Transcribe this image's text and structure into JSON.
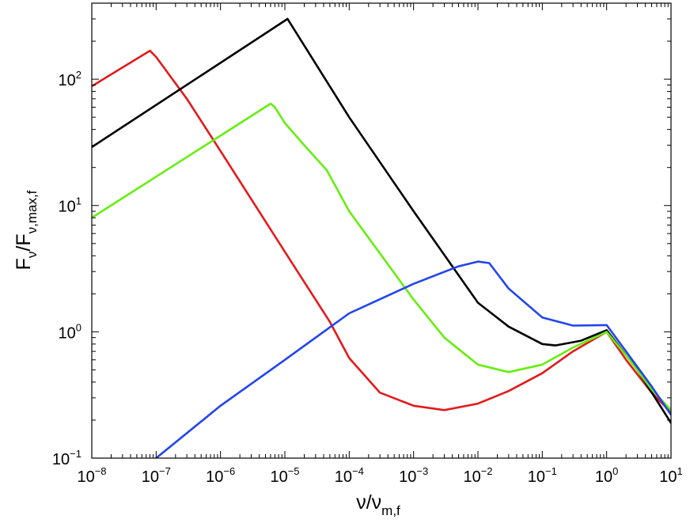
{
  "chart_data": {
    "type": "line",
    "xlabel": {
      "main": "ν/ν",
      "sub": "m,f"
    },
    "ylabel": {
      "main": "F",
      "sub1": "ν",
      "mid": "/F",
      "sub2": "ν,max,f"
    },
    "x_scale": "log",
    "y_scale": "log",
    "xlim": [
      1e-08,
      10
    ],
    "ylim": [
      0.1,
      400
    ],
    "x_ticks": [
      {
        "base": "10",
        "exp": "−8",
        "value": 1e-08
      },
      {
        "base": "10",
        "exp": "−7",
        "value": 1e-07
      },
      {
        "base": "10",
        "exp": "−6",
        "value": 1e-06
      },
      {
        "base": "10",
        "exp": "−5",
        "value": 1e-05
      },
      {
        "base": "10",
        "exp": "−4",
        "value": 0.0001
      },
      {
        "base": "10",
        "exp": "−3",
        "value": 0.001
      },
      {
        "base": "10",
        "exp": "−2",
        "value": 0.01
      },
      {
        "base": "10",
        "exp": "−1",
        "value": 0.1
      },
      {
        "base": "10",
        "exp": "0",
        "value": 1
      },
      {
        "base": "10",
        "exp": "1",
        "value": 10
      }
    ],
    "y_ticks": [
      {
        "base": "10",
        "exp": "−1",
        "value": 0.1
      },
      {
        "base": "10",
        "exp": "0",
        "value": 1
      },
      {
        "base": "10",
        "exp": "1",
        "value": 10
      },
      {
        "base": "10",
        "exp": "2",
        "value": 100
      }
    ],
    "grid": false,
    "legend": "none",
    "series": [
      {
        "color": "#e31a1c",
        "points": [
          [
            1e-08,
            88
          ],
          [
            8e-08,
            168
          ],
          [
            1e-07,
            150
          ],
          [
            3e-07,
            70
          ],
          [
            1e-06,
            27
          ],
          [
            1e-05,
            4.3
          ],
          [
            5e-05,
            1.2
          ],
          [
            0.0001,
            0.62
          ],
          [
            0.0003,
            0.33
          ],
          [
            0.001,
            0.26
          ],
          [
            0.003,
            0.24
          ],
          [
            0.01,
            0.27
          ],
          [
            0.03,
            0.34
          ],
          [
            0.1,
            0.47
          ],
          [
            0.3,
            0.7
          ],
          [
            1,
            1.0
          ],
          [
            2,
            0.6
          ],
          [
            5,
            0.33
          ],
          [
            10,
            0.23
          ]
        ]
      },
      {
        "color": "#000000",
        "points": [
          [
            1e-08,
            29
          ],
          [
            1.1e-05,
            300
          ],
          [
            0.0001,
            50
          ],
          [
            0.001,
            9
          ],
          [
            0.01,
            1.7
          ],
          [
            0.03,
            1.1
          ],
          [
            0.1,
            0.8
          ],
          [
            0.16,
            0.78
          ],
          [
            0.4,
            0.85
          ],
          [
            1,
            1.03
          ],
          [
            3,
            0.5
          ],
          [
            10,
            0.19
          ]
        ]
      },
      {
        "color": "#66ee11",
        "points": [
          [
            1e-08,
            8
          ],
          [
            6e-06,
            64
          ],
          [
            7e-06,
            60
          ],
          [
            1e-05,
            45
          ],
          [
            2e-05,
            30
          ],
          [
            4.5e-05,
            19
          ],
          [
            0.0001,
            9
          ],
          [
            0.001,
            1.8
          ],
          [
            0.003,
            0.9
          ],
          [
            0.01,
            0.55
          ],
          [
            0.03,
            0.48
          ],
          [
            0.1,
            0.55
          ],
          [
            0.3,
            0.75
          ],
          [
            1,
            1.0
          ],
          [
            2,
            0.65
          ],
          [
            5,
            0.35
          ],
          [
            10,
            0.24
          ]
        ]
      },
      {
        "color": "#2244ee",
        "points": [
          [
            1e-07,
            0.1
          ],
          [
            1e-06,
            0.26
          ],
          [
            1e-05,
            0.6
          ],
          [
            0.0001,
            1.4
          ],
          [
            0.001,
            2.4
          ],
          [
            0.005,
            3.3
          ],
          [
            0.01,
            3.6
          ],
          [
            0.015,
            3.5
          ],
          [
            0.03,
            2.2
          ],
          [
            0.1,
            1.3
          ],
          [
            0.3,
            1.12
          ],
          [
            1,
            1.13
          ],
          [
            2,
            0.7
          ],
          [
            5,
            0.37
          ],
          [
            10,
            0.22
          ]
        ]
      }
    ]
  }
}
